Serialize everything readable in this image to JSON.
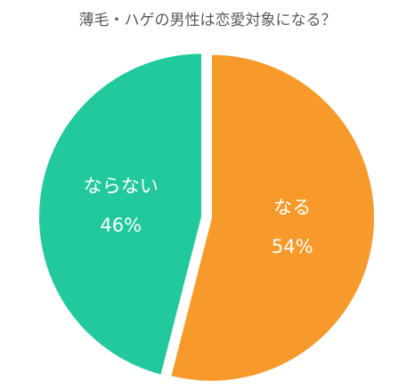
{
  "chart_data": {
    "type": "pie",
    "title": "薄毛・ハゲの男性は恋愛対象になる？",
    "categories": [
      "なる",
      "ならない"
    ],
    "values": [
      54,
      46
    ],
    "value_labels": [
      "54%",
      "46%"
    ],
    "colors": [
      "#f79a2b",
      "#22c99c"
    ]
  }
}
